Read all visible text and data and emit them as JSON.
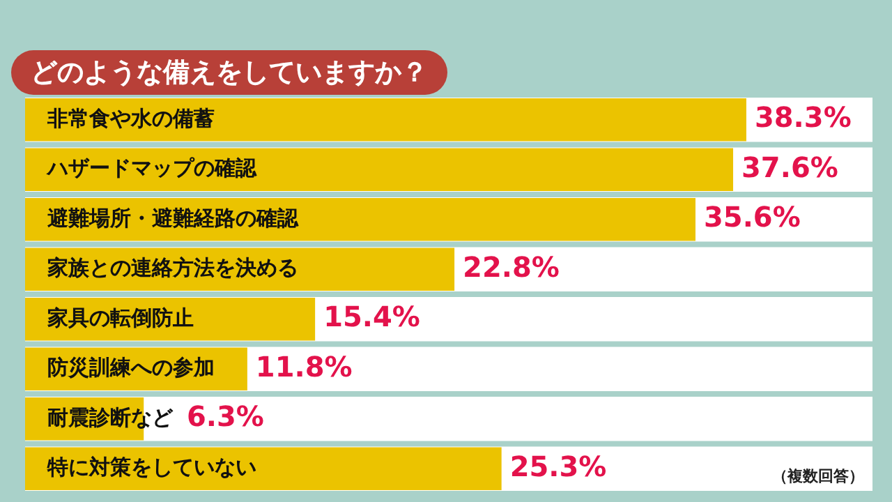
{
  "chart_data": {
    "type": "bar",
    "orientation": "horizontal",
    "title": "どのような備えをしていますか？",
    "categories": [
      "非常食や水の備蓄",
      "ハザードマップの確認",
      "避難場所・避難経路の確認",
      "家族との連絡方法を決める",
      "家具の転倒防止",
      "防災訓練への参加",
      "耐震診断など",
      "特に対策をしていない"
    ],
    "values": [
      38.3,
      37.6,
      35.6,
      22.8,
      15.4,
      11.8,
      6.3,
      25.3
    ],
    "value_labels": [
      "38.3%",
      "37.6%",
      "35.6%",
      "22.8%",
      "15.4%",
      "11.8%",
      "6.3%",
      "25.3%"
    ],
    "color": "#ebc300",
    "annotations": [
      "（複数回答）"
    ],
    "legend": false
  }
}
